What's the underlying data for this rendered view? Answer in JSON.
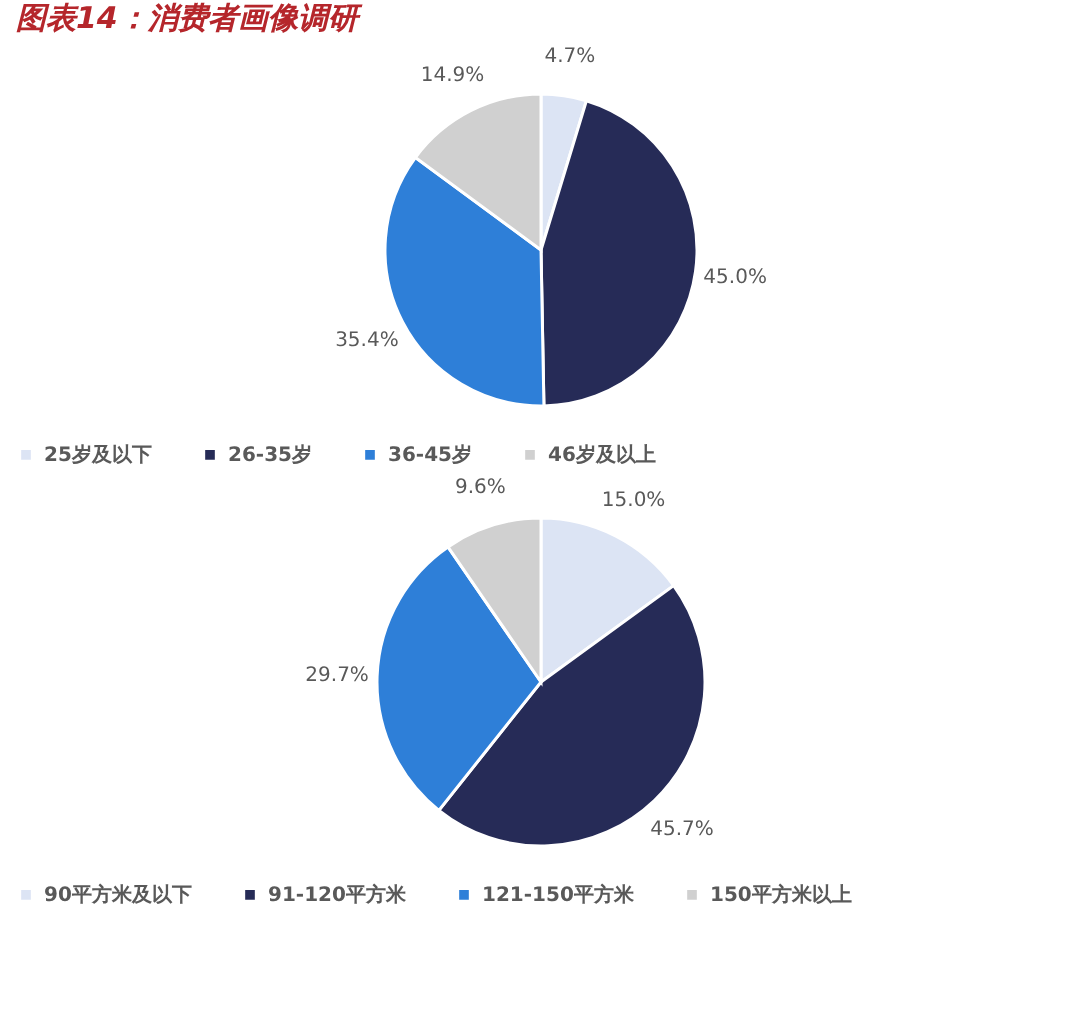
{
  "chart_data": [
    {
      "type": "pie",
      "title": "图表14：消费者画像调研",
      "categories": [
        "25岁及以下",
        "26-35岁",
        "36-45岁",
        "46岁及以上"
      ],
      "values": [
        4.7,
        45.0,
        35.4,
        14.9
      ],
      "value_labels": [
        "4.7%",
        "45.0%",
        "35.4%",
        "14.9%"
      ],
      "colors": [
        "#dce4f4",
        "#262b57",
        "#2e7fd8",
        "#d0d0d0"
      ],
      "legend": "bottom"
    },
    {
      "type": "pie",
      "categories": [
        "90平方米及以下",
        "91-120平方米",
        "121-150平方米",
        "150平方米以上"
      ],
      "values": [
        15.0,
        45.7,
        29.7,
        9.6
      ],
      "value_labels": [
        "15.0%",
        "45.7%",
        "29.7%",
        "9.6%"
      ],
      "colors": [
        "#dce4f4",
        "#262b57",
        "#2e7fd8",
        "#d0d0d0"
      ],
      "legend": "bottom"
    }
  ]
}
